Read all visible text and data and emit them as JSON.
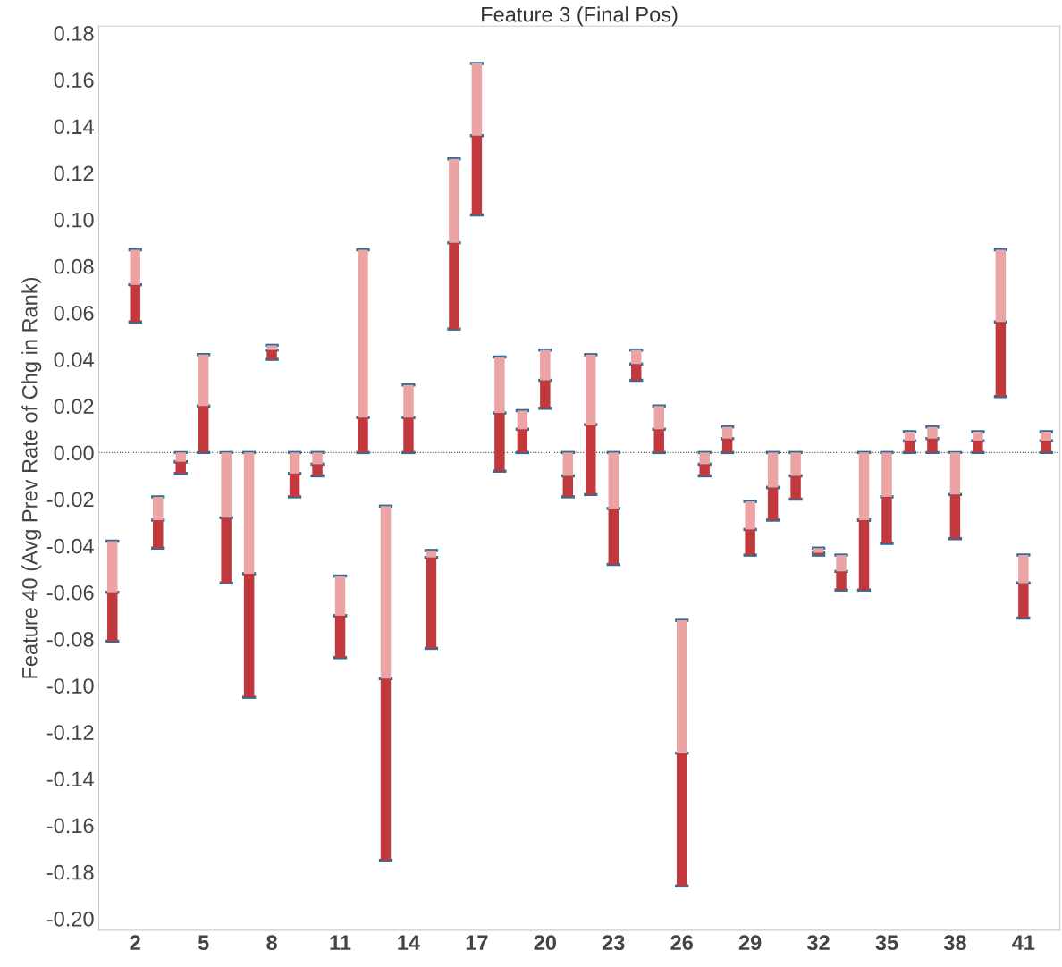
{
  "chart_data": {
    "type": "bar",
    "title": "Feature 3 (Final Pos)",
    "ylabel": "Feature 40 (Avg Prev Rate of Chg in Rank)",
    "categories": [
      null,
      "2",
      null,
      null,
      "5",
      null,
      null,
      "8",
      null,
      null,
      "11",
      null,
      null,
      "14",
      null,
      null,
      "17",
      null,
      null,
      "20",
      null,
      null,
      "23",
      null,
      null,
      "26",
      null,
      null,
      "29",
      null,
      null,
      "32",
      null,
      null,
      "35",
      null,
      null,
      "38",
      null,
      null,
      "41",
      null
    ],
    "series": [
      {
        "color": "#c1393d",
        "base": [
          -0.081,
          0.056,
          -0.041,
          -0.009,
          0,
          -0.056,
          -0.105,
          0.04,
          -0.019,
          -0.01,
          -0.088,
          0,
          -0.175,
          0,
          -0.084,
          0.053,
          0.102,
          -0.008,
          0,
          0.019,
          -0.019,
          -0.018,
          -0.048,
          0.031,
          0,
          -0.186,
          -0.01,
          0,
          -0.044,
          -0.029,
          -0.02,
          -0.044,
          -0.059,
          -0.059,
          -0.039,
          0,
          0,
          -0.037,
          0,
          0.024,
          -0.071,
          0
        ],
        "values": [
          0.021,
          0.016,
          0.012,
          0.005,
          0.02,
          0.028,
          0.053,
          0.004,
          0.01,
          0.005,
          0.018,
          0.015,
          0.078,
          0.015,
          0.039,
          0.037,
          0.034,
          0.025,
          0.01,
          0.012,
          0.009,
          0.03,
          0.024,
          0.007,
          0.01,
          0.057,
          0.005,
          0.006,
          0.011,
          0.014,
          0.01,
          0.001,
          0.008,
          0.03,
          0.02,
          0.005,
          0.006,
          0.019,
          0.005,
          0.032,
          0.015,
          0.005
        ]
      },
      {
        "color": "#eba3a4",
        "base": [
          -0.06,
          0.072,
          -0.029,
          -0.004,
          0.02,
          -0.028,
          -0.052,
          0.044,
          -0.009,
          -0.005,
          -0.07,
          0.015,
          -0.097,
          0.015,
          -0.045,
          0.09,
          0.136,
          0.017,
          0.01,
          0.031,
          -0.01,
          0.012,
          -0.024,
          0.038,
          0.01,
          -0.129,
          -0.005,
          0.006,
          -0.033,
          -0.015,
          -0.01,
          -0.043,
          -0.051,
          -0.029,
          -0.019,
          0.005,
          0.006,
          -0.018,
          0.005,
          0.056,
          -0.056,
          0.005
        ],
        "values": [
          0.022,
          0.015,
          0.01,
          0.004,
          0.022,
          0.028,
          0.052,
          0.002,
          0.009,
          0.005,
          0.017,
          0.072,
          0.074,
          0.014,
          0.003,
          0.036,
          0.031,
          0.024,
          0.008,
          0.013,
          0.01,
          0.03,
          0.024,
          0.006,
          0.01,
          0.057,
          0.005,
          0.005,
          0.012,
          0.015,
          0.01,
          0.002,
          0.007,
          0.029,
          0.019,
          0.004,
          0.005,
          0.018,
          0.004,
          0.031,
          0.012,
          0.004
        ]
      }
    ],
    "ylim": [
      -0.205,
      0.183
    ],
    "yticks": [
      {
        "value": -0.2,
        "label": "-0.20"
      },
      {
        "value": -0.18,
        "label": "-0.18"
      },
      {
        "value": -0.16,
        "label": "-0.16"
      },
      {
        "value": -0.14,
        "label": "-0.14"
      },
      {
        "value": -0.12,
        "label": "-0.12"
      },
      {
        "value": -0.1,
        "label": "-0.10"
      },
      {
        "value": -0.08,
        "label": "-0.08"
      },
      {
        "value": -0.06,
        "label": "-0.06"
      },
      {
        "value": -0.04,
        "label": "-0.04"
      },
      {
        "value": -0.02,
        "label": "-0.02"
      },
      {
        "value": 0,
        "label": "0.00"
      },
      {
        "value": 0.02,
        "label": "0.02"
      },
      {
        "value": 0.04,
        "label": "0.04"
      },
      {
        "value": 0.06,
        "label": "0.06"
      },
      {
        "value": 0.08,
        "label": "0.08"
      },
      {
        "value": 0.1,
        "label": "0.10"
      },
      {
        "value": 0.12,
        "label": "0.12"
      },
      {
        "value": 0.14,
        "label": "0.14"
      },
      {
        "value": 0.16,
        "label": "0.16"
      },
      {
        "value": 0.18,
        "label": "0.18"
      }
    ],
    "ref_lines": [
      {
        "axis": "y",
        "value": 0,
        "color": "#555555",
        "line_style": "dotted"
      }
    ],
    "grid": false
  }
}
